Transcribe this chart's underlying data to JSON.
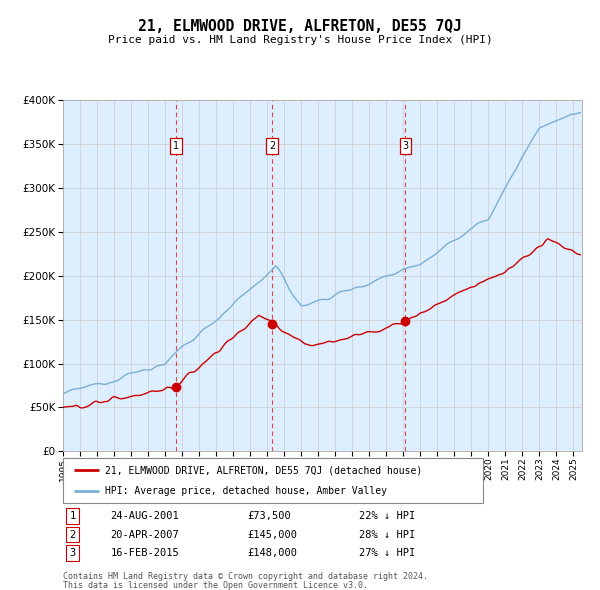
{
  "title": "21, ELMWOOD DRIVE, ALFRETON, DE55 7QJ",
  "subtitle": "Price paid vs. HM Land Registry's House Price Index (HPI)",
  "legend_line1": "21, ELMWOOD DRIVE, ALFRETON, DE55 7QJ (detached house)",
  "legend_line2": "HPI: Average price, detached house, Amber Valley",
  "footer1": "Contains HM Land Registry data © Crown copyright and database right 2024.",
  "footer2": "This data is licensed under the Open Government Licence v3.0.",
  "transactions": [
    {
      "label": "1",
      "date": "24-AUG-2001",
      "price": 73500,
      "pct": "22%",
      "dir": "↓",
      "year": 2001.65
    },
    {
      "label": "2",
      "date": "20-APR-2007",
      "price": 145000,
      "pct": "28%",
      "dir": "↓",
      "year": 2007.3
    },
    {
      "label": "3",
      "date": "16-FEB-2015",
      "price": 148000,
      "pct": "27%",
      "dir": "↓",
      "year": 2015.12
    }
  ],
  "red_line_color": "#cc0000",
  "blue_line_color": "#7aafd4",
  "background_color": "#ddeeff",
  "plot_bg": "#ffffff",
  "ylim": [
    0,
    400000
  ],
  "xlim_start": 1995.0,
  "xlim_end": 2025.5,
  "yticks": [
    0,
    50000,
    100000,
    150000,
    200000,
    250000,
    300000,
    350000,
    400000
  ]
}
